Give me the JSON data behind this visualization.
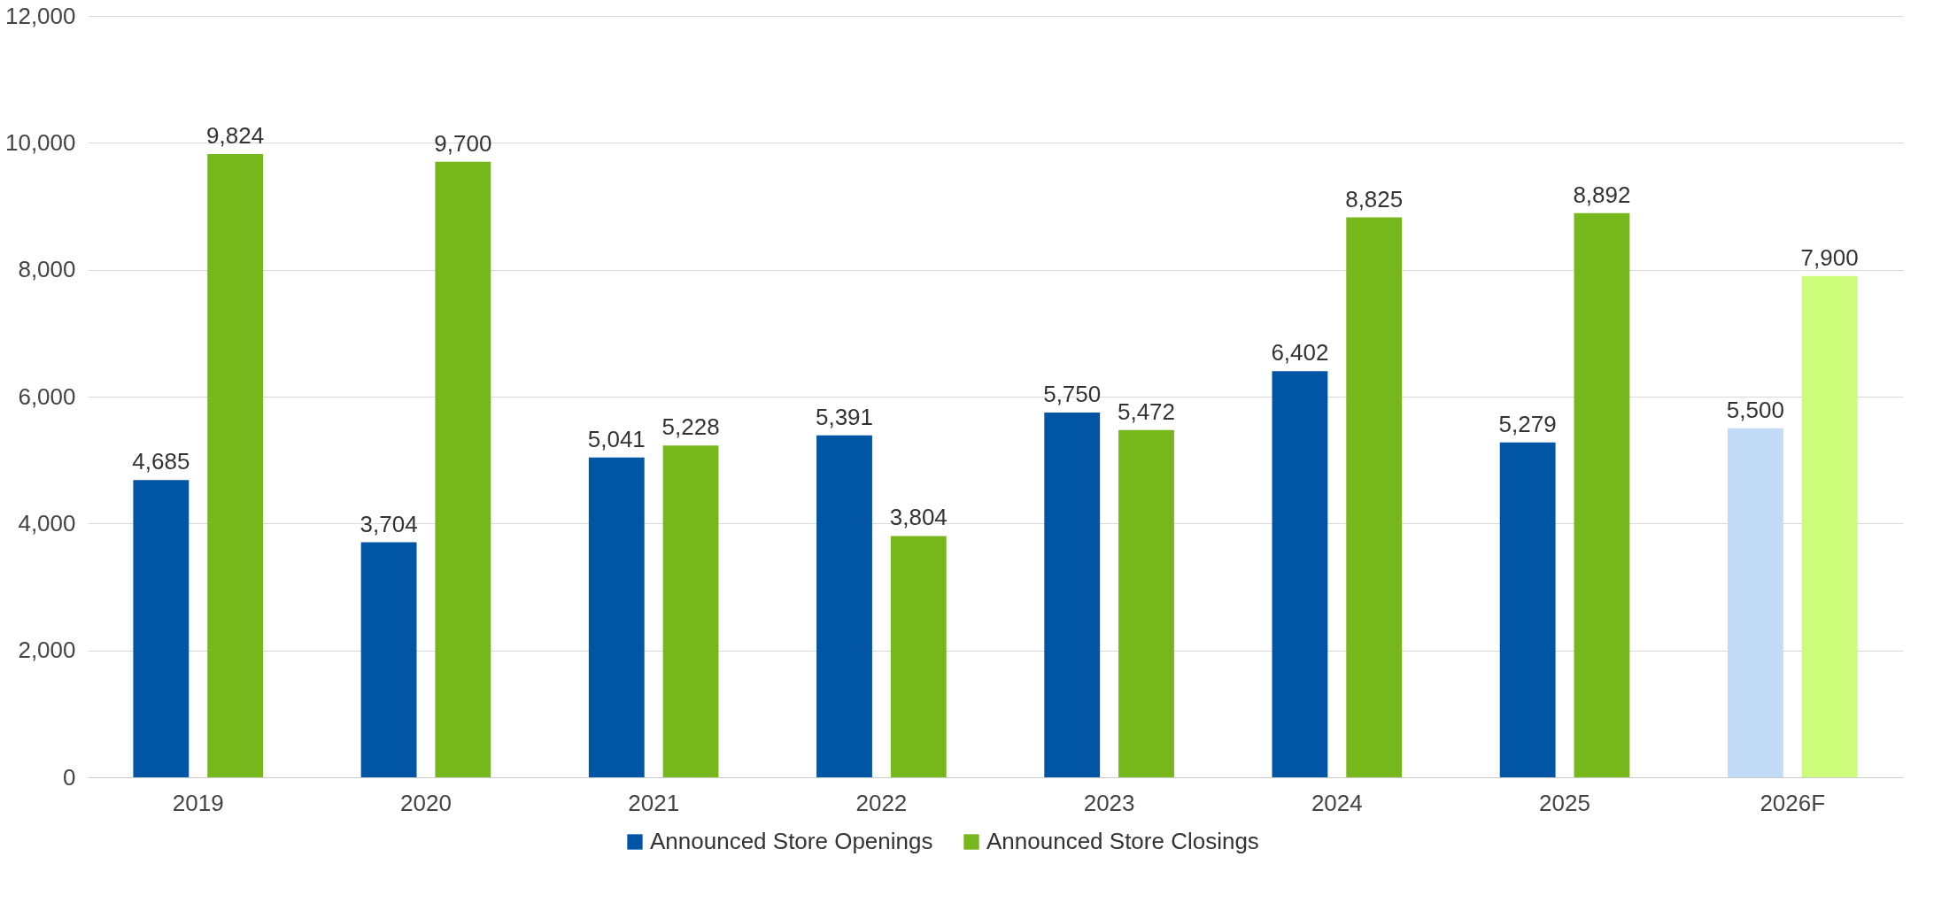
{
  "chart_data": {
    "type": "bar",
    "categories": [
      "2019",
      "2020",
      "2021",
      "2022",
      "2023",
      "2024",
      "2025",
      "2026F"
    ],
    "series": [
      {
        "name": "Announced Store Openings",
        "color": "#0055a5",
        "colors": [
          "#0055a5",
          "#0055a5",
          "#0055a5",
          "#0055a5",
          "#0055a5",
          "#0055a5",
          "#0055a5",
          "#c2dcf8"
        ],
        "values": [
          4685,
          3704,
          5041,
          5391,
          5750,
          6402,
          5279,
          5500
        ],
        "value_labels": [
          "4,685",
          "3,704",
          "5,041",
          "5,391",
          "5,750",
          "6,402",
          "5,279",
          "5,500"
        ]
      },
      {
        "name": "Announced Store Closings",
        "color": "#76b71b",
        "colors": [
          "#76b71b",
          "#76b71b",
          "#76b71b",
          "#76b71b",
          "#76b71b",
          "#76b71b",
          "#76b71b",
          "#ccfc7a"
        ],
        "values": [
          9824,
          9700,
          5228,
          3804,
          5472,
          8825,
          8892,
          7900
        ],
        "value_labels": [
          "9,824",
          "9,700",
          "5,228",
          "3,804",
          "5,472",
          "8,825",
          "8,892",
          "7,900"
        ]
      }
    ],
    "ylim": [
      0,
      12000
    ],
    "yticks": [
      0,
      {
        "value": 2000,
        "label": "2,000"
      },
      {
        "value": 4000,
        "label": "4,000"
      },
      {
        "value": 6000,
        "label": "6,000"
      },
      {
        "value": 8000,
        "label": "8,000"
      },
      {
        "value": 10000,
        "label": "10,000"
      },
      {
        "value": 12000,
        "label": "12,000"
      }
    ],
    "grid": "y",
    "legend": "bottom"
  }
}
